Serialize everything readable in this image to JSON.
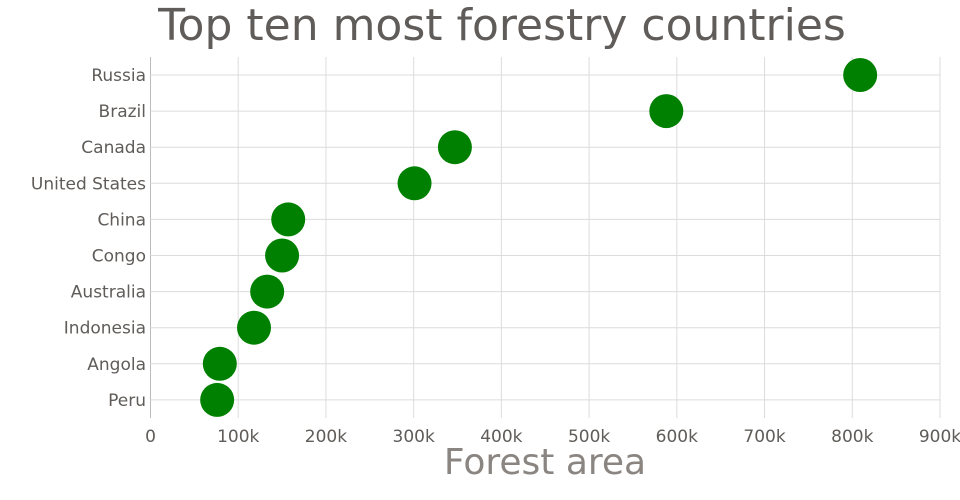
{
  "chart_data": {
    "type": "scatter",
    "title": "Top ten most forestry countries",
    "xlabel": "Forest area",
    "ylabel": "",
    "xlim": [
      0,
      900000
    ],
    "x_ticks": [
      "0",
      "100k",
      "200k",
      "300k",
      "400k",
      "500k",
      "600k",
      "700k",
      "800k",
      "900k"
    ],
    "x_tick_values": [
      0,
      100000,
      200000,
      300000,
      400000,
      500000,
      600000,
      700000,
      800000,
      900000
    ],
    "categories": [
      "Russia",
      "Brazil",
      "Canada",
      "United States",
      "China",
      "Congo",
      "Australia",
      "Indonesia",
      "Angola",
      "Peru"
    ],
    "values": [
      809000,
      588000,
      347000,
      301000,
      157000,
      150000,
      133000,
      118000,
      79000,
      76000
    ],
    "marker_color": "#008000",
    "grid": true,
    "legend": "none"
  }
}
